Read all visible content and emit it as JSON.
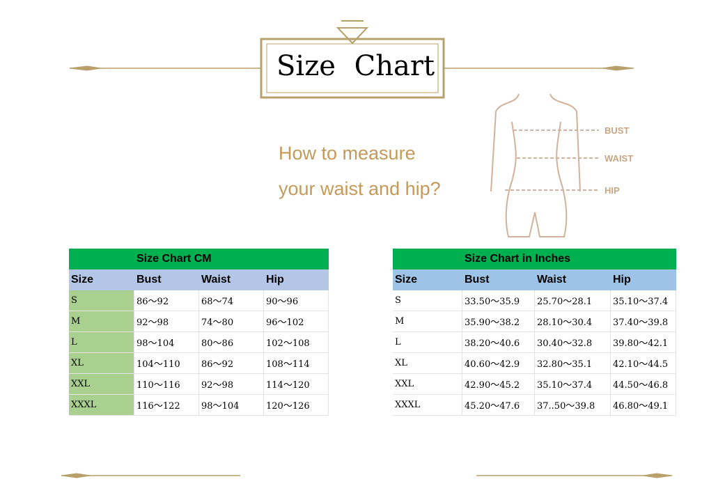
{
  "header": {
    "title": "Size Chart"
  },
  "measure": {
    "lines": [
      "How to measure",
      "your waist and hip?"
    ],
    "labels": [
      "BUST",
      "WAIST",
      "HIP"
    ]
  },
  "tables": [
    {
      "title": "Size Chart CM",
      "headers": [
        "Size",
        "Bust",
        "Waist",
        "Hip"
      ],
      "rows": [
        [
          "S",
          "86～92",
          "68～74",
          "90～96"
        ],
        [
          "M",
          "92～98",
          "74～80",
          "96～102"
        ],
        [
          "L",
          "98～104",
          "80～86",
          "102～108"
        ],
        [
          "XL",
          "104～110",
          "86～92",
          "108～114"
        ],
        [
          "XXL",
          "110～116",
          "92～98",
          "114～120"
        ],
        [
          "XXXL",
          "116～122",
          "98～104",
          "120～126"
        ]
      ]
    },
    {
      "title": "Size Chart in Inches",
      "headers": [
        "Size",
        "Bust",
        "Waist",
        "Hip"
      ],
      "rows": [
        [
          "S",
          "33.50～35.9",
          "25.70～28.1",
          "35.10～37.4"
        ],
        [
          "M",
          "35.90～38.2",
          "28.10～30.4",
          "37.40～39.8"
        ],
        [
          "L",
          "38.20～40.6",
          "30.40～32.8",
          "39.80～42.1"
        ],
        [
          "XL",
          "40.60～42.9",
          "32.80～35.1",
          "42.10～44.5"
        ],
        [
          "XXL",
          "42.90～45.2",
          "35.10～37.4",
          "44.50～46.8"
        ],
        [
          "XXXL",
          "45.20～47.6",
          "37..50～39.8",
          "46.80～49.1"
        ]
      ]
    }
  ]
}
